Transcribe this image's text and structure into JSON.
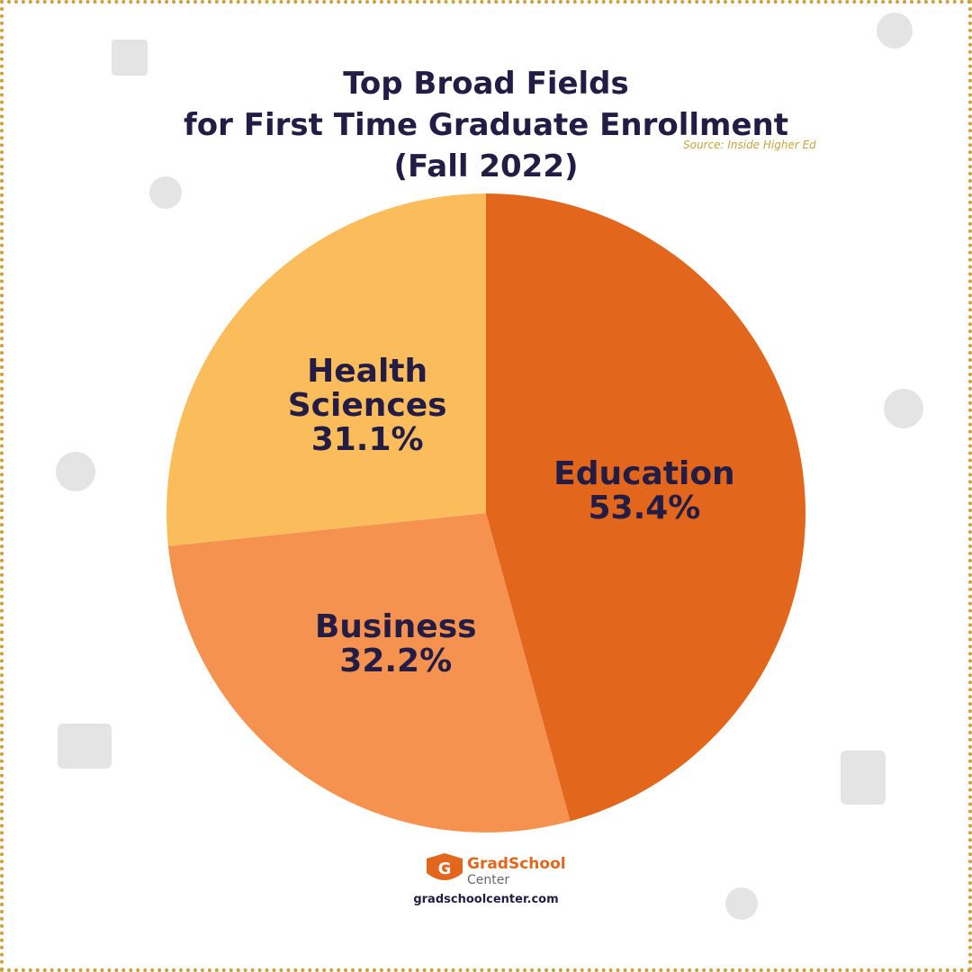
{
  "chart_data": {
    "type": "pie",
    "title": [
      "Top Broad Fields",
      "for First Time Graduate Enrollment",
      "(Fall 2022)"
    ],
    "source": "Source: Inside Higher Ed",
    "categories": [
      "Education",
      "Business",
      "Health Sciences"
    ],
    "values": [
      53.4,
      32.2,
      31.1
    ],
    "value_labels": [
      "53.4%",
      "32.2%",
      "31.1%"
    ],
    "colors": [
      "#e2661b",
      "#f5924f",
      "#fbbd5c"
    ]
  },
  "footer": {
    "brand": "GradSchool",
    "brand_sub": "Center",
    "url": "gradschoolcenter.com"
  }
}
